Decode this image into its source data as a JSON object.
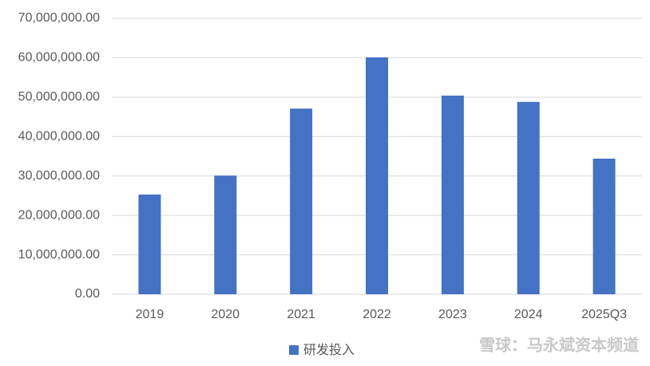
{
  "chart_data": {
    "type": "bar",
    "categories": [
      "2019",
      "2020",
      "2021",
      "2022",
      "2023",
      "2024",
      "2025Q3"
    ],
    "series": [
      {
        "name": "研发投入",
        "color": "#4472c4",
        "values": [
          25300000,
          30100000,
          47100000,
          60100000,
          50400000,
          48800000,
          34400000
        ]
      }
    ],
    "ylim": [
      0,
      70000000
    ],
    "yticks": [
      {
        "value": 0,
        "label": "0.00"
      },
      {
        "value": 10000000,
        "label": "10,000,000.00"
      },
      {
        "value": 20000000,
        "label": "20,000,000.00"
      },
      {
        "value": 30000000,
        "label": "30,000,000.00"
      },
      {
        "value": 40000000,
        "label": "40,000,000.00"
      },
      {
        "value": 50000000,
        "label": "50,000,000.00"
      },
      {
        "value": 60000000,
        "label": "60,000,000.00"
      },
      {
        "value": 70000000,
        "label": "70,000,000.00"
      }
    ],
    "grid": true,
    "legend": "bottom",
    "watermark": "雪球：马永斌资本频道"
  }
}
